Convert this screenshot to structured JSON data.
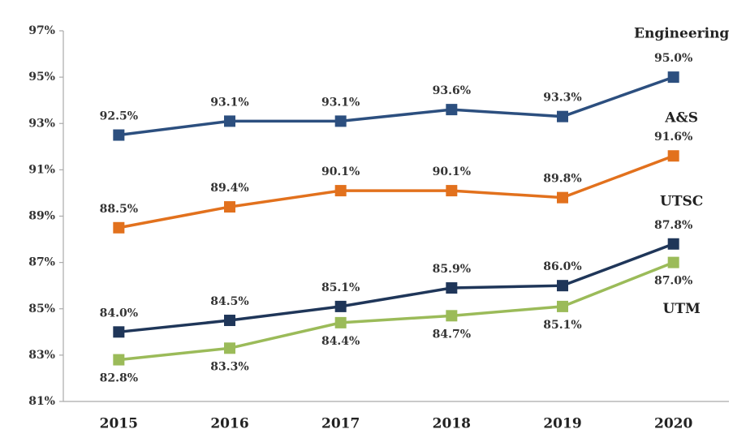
{
  "chart_data": {
    "type": "line",
    "categories": [
      "2015",
      "2016",
      "2017",
      "2018",
      "2019",
      "2020"
    ],
    "series": [
      {
        "name": "Engineering",
        "color": "#2c4f7f",
        "values": [
          92.5,
          93.1,
          93.1,
          93.6,
          93.3,
          95.0
        ],
        "value_labels": [
          "92.5%",
          "93.1%",
          "93.1%",
          "93.6%",
          "93.3%",
          "95.0%"
        ]
      },
      {
        "name": "A&S",
        "color": "#e2711d",
        "values": [
          88.5,
          89.4,
          90.1,
          90.1,
          89.8,
          91.6
        ],
        "value_labels": [
          "88.5%",
          "89.4%",
          "90.1%",
          "90.1%",
          "89.8%",
          "91.6%"
        ]
      },
      {
        "name": "UTSC",
        "color": "#1f3659",
        "values": [
          84.0,
          84.5,
          85.1,
          85.9,
          86.0,
          87.8
        ],
        "value_labels": [
          "84.0%",
          "84.5%",
          "85.1%",
          "85.9%",
          "86.0%",
          "87.8%"
        ]
      },
      {
        "name": "UTM",
        "color": "#9bbb59",
        "values": [
          82.8,
          83.3,
          84.4,
          84.7,
          85.1,
          87.0
        ],
        "value_labels": [
          "82.8%",
          "83.3%",
          "84.4%",
          "84.7%",
          "85.1%",
          "87.0%"
        ]
      }
    ],
    "ylim": [
      81,
      97
    ],
    "yticks": [
      {
        "value": 81,
        "label": "81%"
      },
      {
        "value": 83,
        "label": "83%"
      },
      {
        "value": 85,
        "label": "85%"
      },
      {
        "value": 87,
        "label": "87%"
      },
      {
        "value": 89,
        "label": "89%"
      },
      {
        "value": 91,
        "label": "91%"
      },
      {
        "value": 93,
        "label": "93%"
      },
      {
        "value": 95,
        "label": "95%"
      },
      {
        "value": 97,
        "label": "97%"
      }
    ],
    "grid": false
  }
}
